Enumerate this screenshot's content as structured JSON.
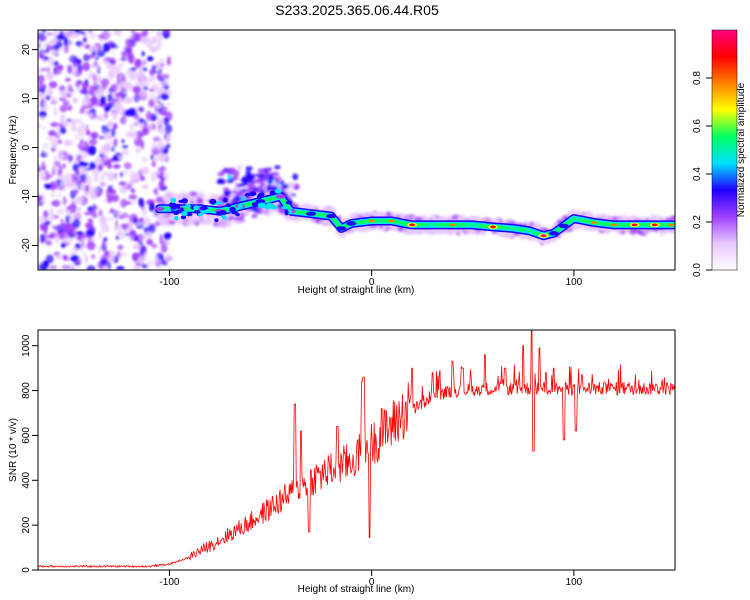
{
  "title": "S233.2025.365.06.44.R05",
  "chart_data": [
    {
      "type": "heatmap",
      "name": "spectrogram",
      "xlabel": "Height of straight line (km)",
      "ylabel": "Frequency (Hz)",
      "xlim": [
        -165,
        150
      ],
      "ylim": [
        -25,
        24
      ],
      "xticks": [
        -100,
        0,
        100
      ],
      "yticks": [
        -20,
        -10,
        0,
        10,
        20
      ],
      "colorbar": {
        "label": "Normalized spectral amplitude",
        "range": [
          0,
          1
        ],
        "ticks": [
          "0.0",
          "0.2",
          "0.4",
          "0.6",
          "0.8"
        ],
        "colors": [
          "#ffffff",
          "#e8c8ff",
          "#a040ff",
          "#2000ff",
          "#00e0ff",
          "#00ff60",
          "#ffff00",
          "#ff8000",
          "#ff0000",
          "#ff0080"
        ]
      },
      "ridge": {
        "x": [
          -105,
          -95,
          -85,
          -75,
          -65,
          -55,
          -45,
          -40,
          -30,
          -20,
          -15,
          -10,
          0,
          10,
          20,
          30,
          40,
          50,
          60,
          70,
          78,
          85,
          90,
          95,
          100,
          110,
          120,
          130,
          140,
          148
        ],
        "y": [
          -12.5,
          -12.5,
          -12.5,
          -13,
          -12,
          -11,
          -10,
          -13,
          -13.5,
          -14,
          -16.5,
          -15.5,
          -15,
          -15,
          -15.8,
          -15.8,
          -15.8,
          -15.8,
          -16.2,
          -16.5,
          -17,
          -18,
          -17.5,
          -16,
          -14.5,
          -15.3,
          -15.8,
          -15.8,
          -15.8,
          -15.8
        ],
        "amplitude": [
          0.3,
          0.35,
          0.3,
          0.3,
          0.35,
          0.4,
          0.35,
          0.35,
          0.4,
          0.45,
          0.45,
          0.5,
          0.8,
          0.75,
          0.9,
          0.6,
          0.8,
          0.6,
          0.85,
          0.6,
          0.55,
          0.95,
          0.5,
          0.5,
          0.55,
          0.75,
          0.8,
          0.85,
          0.85,
          0.8
        ]
      }
    },
    {
      "type": "line",
      "name": "snr",
      "xlabel": "Height of straight line (km)",
      "ylabel": "SNR (10 * v/v)",
      "xlim": [
        -165,
        150
      ],
      "ylim": [
        0,
        1070
      ],
      "xticks": [
        -100,
        0,
        100
      ],
      "yticks": [
        0,
        200,
        400,
        600,
        800,
        1000
      ],
      "color": "#ff0000",
      "trend": {
        "x": [
          -165,
          -110,
          -100,
          -90,
          -80,
          -70,
          -60,
          -50,
          -40,
          -30,
          -20,
          -10,
          0,
          10,
          20,
          30,
          40,
          60,
          80,
          100,
          120,
          150
        ],
        "y": [
          15,
          15,
          25,
          55,
          100,
          150,
          200,
          260,
          320,
          380,
          420,
          460,
          530,
          610,
          700,
          770,
          790,
          800,
          800,
          800,
          800,
          800
        ]
      },
      "spikes": {
        "x": [
          -38,
          -35,
          -31,
          -17,
          -5,
          -4,
          -1,
          5,
          20,
          30,
          40,
          45,
          56,
          66,
          75,
          79,
          80,
          83,
          86,
          90,
          95,
          101,
          104
        ],
        "y": [
          740,
          620,
          170,
          640,
          840,
          860,
          145,
          720,
          900,
          880,
          930,
          900,
          960,
          900,
          1000,
          1070,
          530,
          990,
          880,
          900,
          580,
          620,
          870
        ]
      }
    }
  ]
}
